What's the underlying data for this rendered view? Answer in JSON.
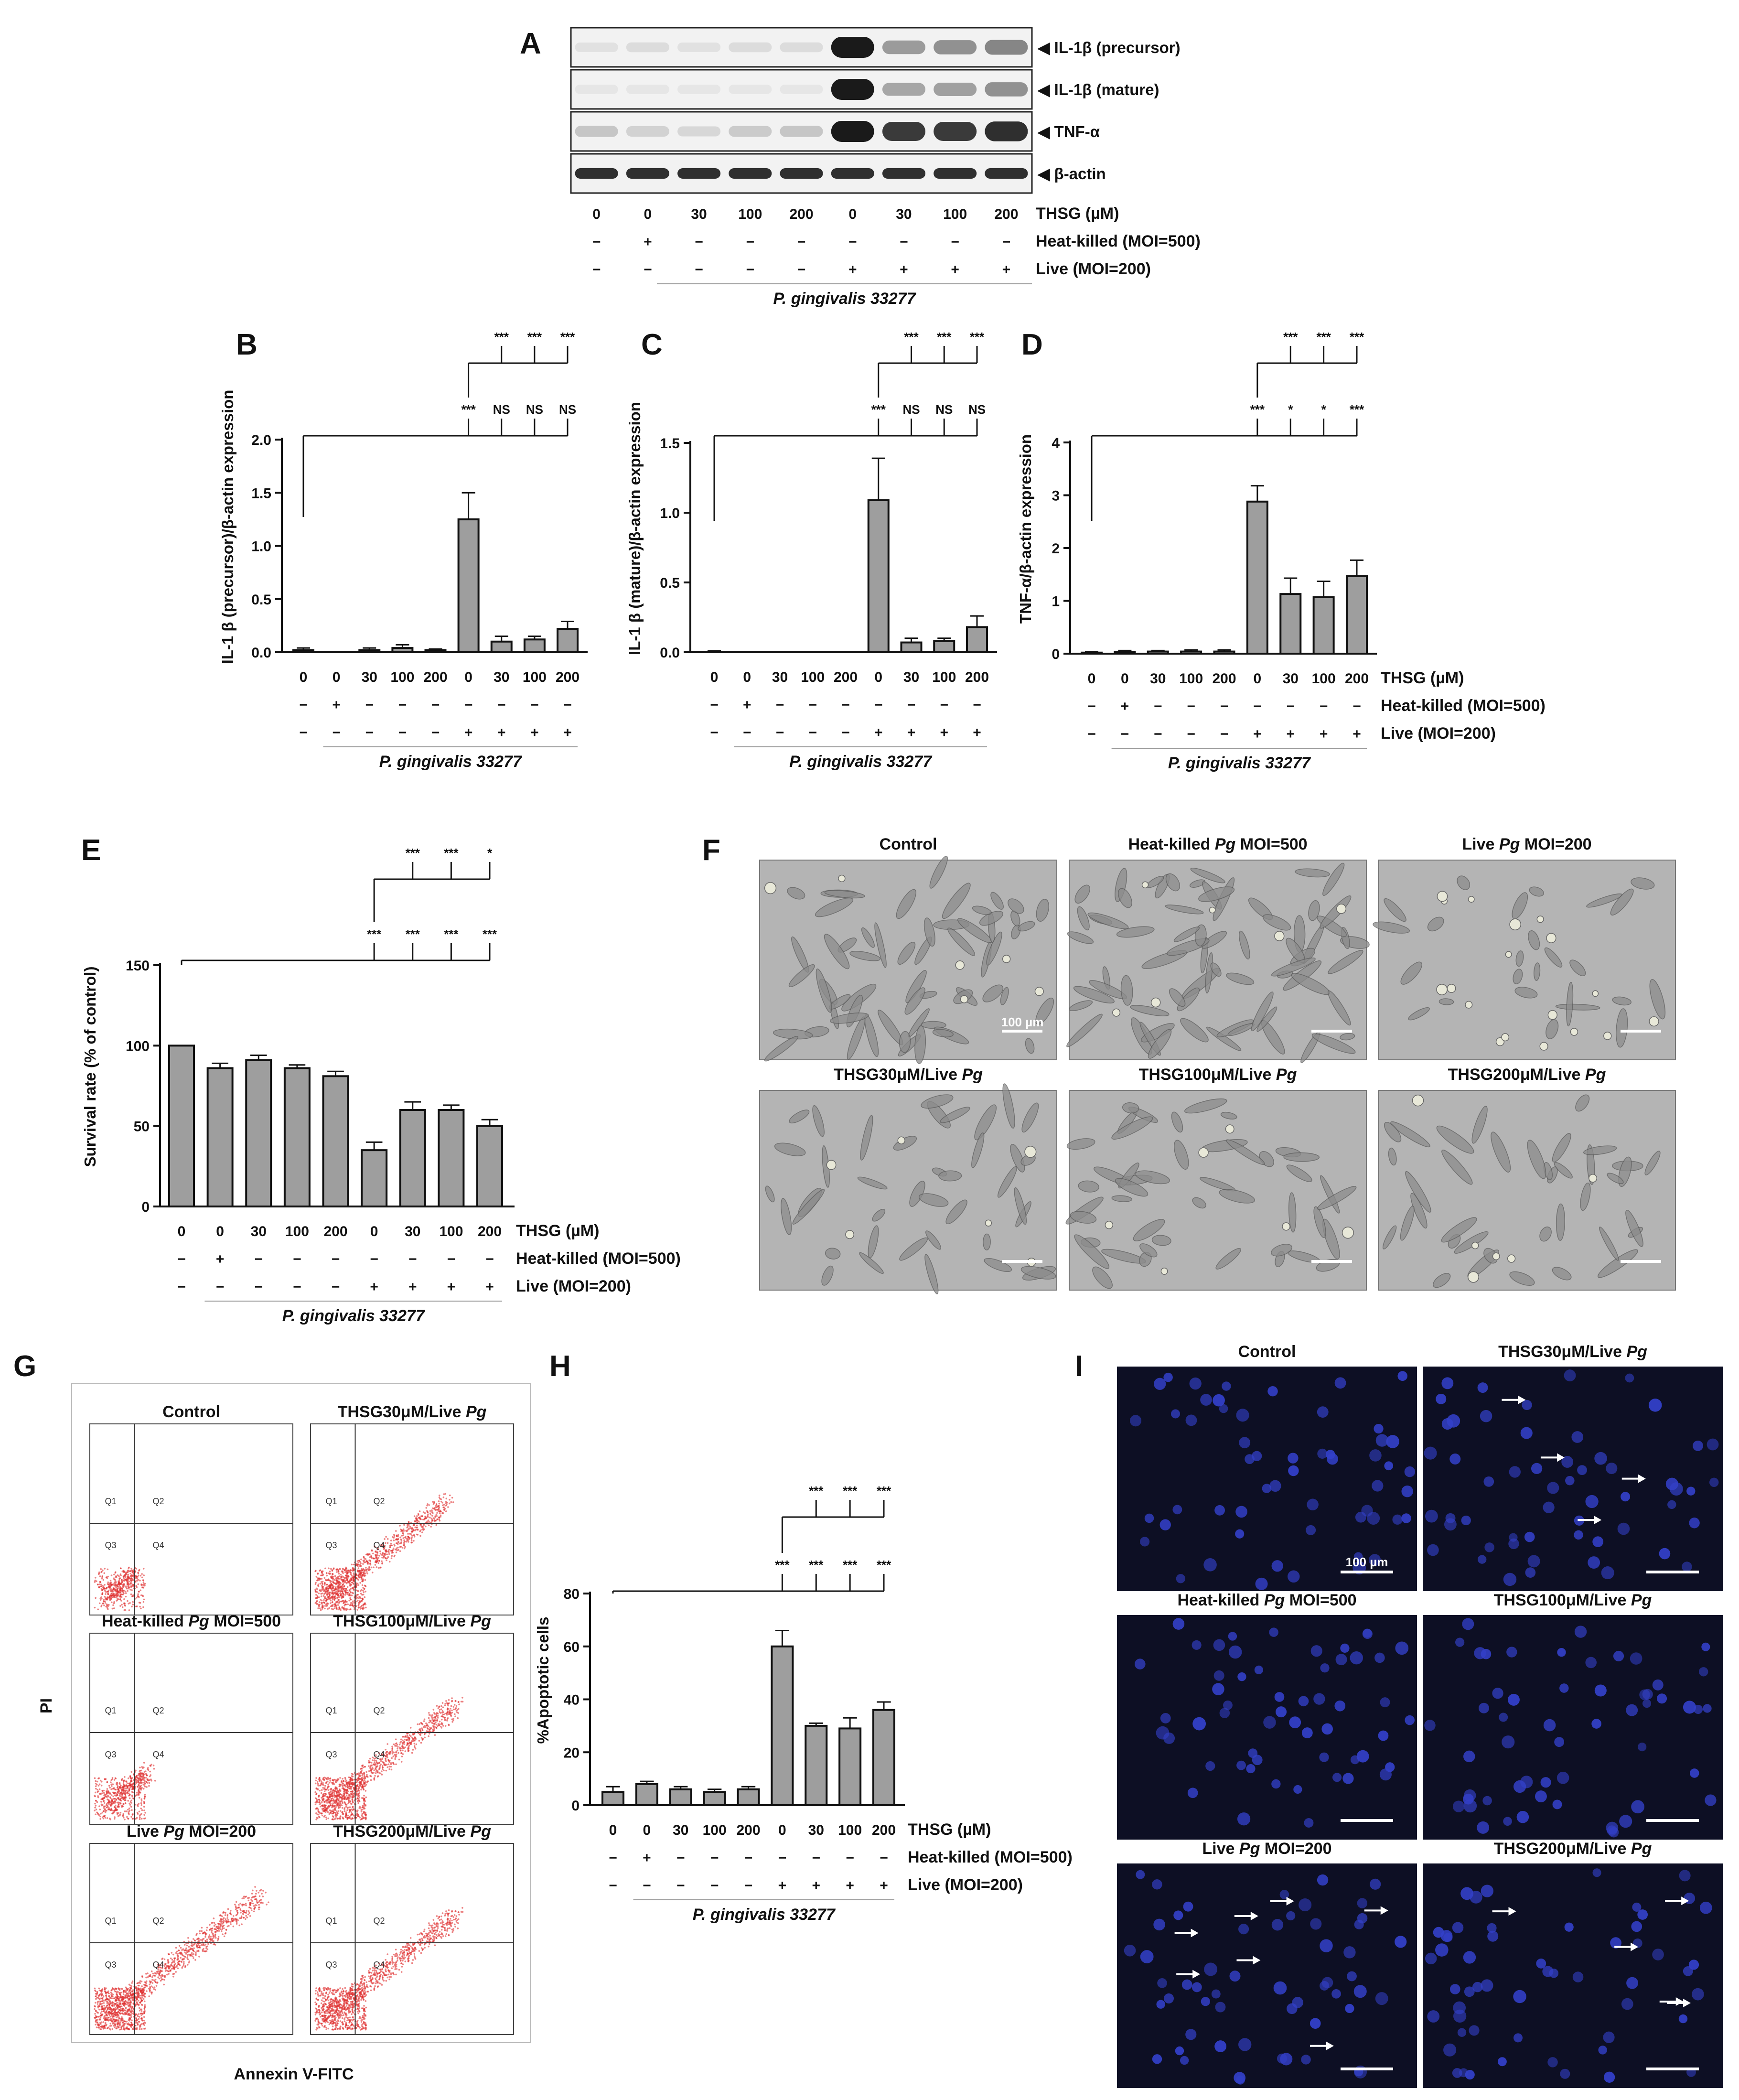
{
  "panel_letters": {
    "A": "A",
    "B": "B",
    "C": "C",
    "D": "D",
    "E": "E",
    "F": "F",
    "G": "G",
    "H": "H",
    "I": "I"
  },
  "colors": {
    "bar": "#9e9e9e",
    "blot_bg": "#f2f2f2",
    "band": "#1a1a1a",
    "micro_bg": "#b4b4b4",
    "flow_dot": "#e03030",
    "fluor_bg": "#0d0f24",
    "nucleus": "#3340c8"
  },
  "conditions": {
    "thsg": [
      "0",
      "0",
      "30",
      "100",
      "200",
      "0",
      "30",
      "100",
      "200"
    ],
    "heat_killed": [
      "−",
      "+",
      "−",
      "−",
      "−",
      "−",
      "−",
      "−",
      "−"
    ],
    "live": [
      "−",
      "−",
      "−",
      "−",
      "−",
      "+",
      "+",
      "+",
      "+"
    ],
    "row_labels": {
      "thsg": "THSG (µM)",
      "heat_killed": "Heat-killed (MOI=500)",
      "live": "Live (MOI=200)"
    },
    "strain_label": "P. gingivalis 33277"
  },
  "blot": {
    "labels": [
      "◀ IL-1β (precursor)",
      "◀ IL-1β (mature)",
      "◀ TNF-α",
      "◀ β-actin"
    ],
    "intensities": [
      [
        0.08,
        0.1,
        0.08,
        0.1,
        0.1,
        1.0,
        0.4,
        0.45,
        0.5
      ],
      [
        0.05,
        0.05,
        0.05,
        0.05,
        0.05,
        1.0,
        0.35,
        0.38,
        0.45
      ],
      [
        0.2,
        0.15,
        0.12,
        0.18,
        0.2,
        1.0,
        0.85,
        0.85,
        0.9
      ],
      [
        0.9,
        0.9,
        0.9,
        0.9,
        0.9,
        0.9,
        0.9,
        0.9,
        0.9
      ]
    ]
  },
  "chart_data": [
    {
      "panel": "B",
      "type": "bar",
      "ylabel": "IL-1 β (precursor)/β-actin expression",
      "ylim": [
        0,
        2.0
      ],
      "yticks": [
        "0.0",
        "0.5",
        "1.0",
        "1.5",
        "2.0"
      ],
      "ytick_values": [
        0,
        0.5,
        1.0,
        1.5,
        2.0
      ],
      "values": [
        0.02,
        0.0,
        0.02,
        0.04,
        0.02,
        1.25,
        0.1,
        0.12,
        0.22
      ],
      "errors": [
        0.02,
        0,
        0.02,
        0.03,
        0.01,
        0.25,
        0.05,
        0.03,
        0.07
      ],
      "sig_top": [
        "***",
        "***",
        "***"
      ],
      "sig_bottom": [
        "***",
        "NS",
        "NS",
        "NS"
      ]
    },
    {
      "panel": "C",
      "type": "bar",
      "ylabel": "IL-1 β (mature)/β-actin expression",
      "ylim": [
        0,
        1.5
      ],
      "yticks": [
        "0.0",
        "0.5",
        "1.0",
        "1.5"
      ],
      "ytick_values": [
        0,
        0.5,
        1.0,
        1.5
      ],
      "values": [
        0.0,
        0.0,
        0.0,
        0.0,
        0.0,
        1.09,
        0.07,
        0.08,
        0.18
      ],
      "errors": [
        0.01,
        0,
        0,
        0,
        0,
        0.3,
        0.03,
        0.02,
        0.08
      ],
      "sig_top": [
        "***",
        "***",
        "***"
      ],
      "sig_bottom": [
        "***",
        "NS",
        "NS",
        "NS"
      ]
    },
    {
      "panel": "D",
      "type": "bar",
      "ylabel": "TNF-α/β-actin expression",
      "ylim": [
        0,
        4
      ],
      "yticks": [
        "0",
        "1",
        "2",
        "3",
        "4"
      ],
      "ytick_values": [
        0,
        1,
        2,
        3,
        4
      ],
      "values": [
        0.02,
        0.03,
        0.04,
        0.04,
        0.04,
        2.88,
        1.13,
        1.07,
        1.47
      ],
      "errors": [
        0.02,
        0.03,
        0.02,
        0.03,
        0.03,
        0.3,
        0.3,
        0.3,
        0.3
      ],
      "sig_top": [
        "***",
        "***",
        "***"
      ],
      "sig_bottom": [
        "***",
        "*",
        "*",
        "***"
      ]
    },
    {
      "panel": "E",
      "type": "bar",
      "ylabel": "Survival rate (% of control)",
      "ylim": [
        0,
        150
      ],
      "yticks": [
        "0",
        "50",
        "100",
        "150"
      ],
      "ytick_values": [
        0,
        50,
        100,
        150
      ],
      "values": [
        100,
        86,
        91,
        86,
        81,
        35,
        60,
        60,
        50
      ],
      "errors": [
        0,
        3,
        3,
        2,
        3,
        5,
        5,
        3,
        4
      ],
      "sig_top": [
        "***",
        "***",
        "*"
      ],
      "sig_bottom": [
        "***",
        "***",
        "***",
        "***"
      ]
    },
    {
      "panel": "H",
      "type": "bar",
      "ylabel": "%Apoptotic cells",
      "ylim": [
        0,
        80
      ],
      "yticks": [
        "0",
        "20",
        "40",
        "60",
        "80"
      ],
      "ytick_values": [
        0,
        20,
        40,
        60,
        80
      ],
      "values": [
        5,
        8,
        6,
        5,
        6,
        60,
        30,
        29,
        36
      ],
      "errors": [
        2,
        1,
        1,
        1,
        1,
        6,
        1,
        4,
        3
      ],
      "sig_top": [
        "***",
        "***",
        "***"
      ],
      "sig_bottom": [
        "***",
        "***",
        "***",
        "***"
      ]
    }
  ],
  "micrographs": {
    "titles": [
      "Control",
      "Heat-killed Pg MOI=500",
      "Live Pg MOI=200",
      "THSG30μM/Live Pg",
      "THSG100μM/Live Pg",
      "THSG200μM/Live Pg"
    ],
    "scale": "100 µm"
  },
  "flow": {
    "titles": [
      "Control",
      "THSG30μM/Live Pg",
      "Heat-killed Pg MOI=500",
      "THSG100μM/Live Pg",
      "Live Pg MOI=200",
      "THSG200μM/Live Pg"
    ],
    "density": [
      0.15,
      0.7,
      0.25,
      0.75,
      0.9,
      0.75
    ],
    "quadrants": [
      "Q1",
      "Q2",
      "Q3",
      "Q4"
    ],
    "xlabel": "Annexin V-FITC",
    "ylabel": "PI"
  },
  "fluor": {
    "titles": [
      "Control",
      "THSG30μM/Live Pg",
      "Heat-killed Pg MOI=500",
      "THSG100μM/Live Pg",
      "Live Pg MOI=200",
      "THSG200μM/Live Pg"
    ],
    "scale": "100 µm",
    "arrows": [
      0,
      4,
      0,
      0,
      7,
      5
    ]
  }
}
